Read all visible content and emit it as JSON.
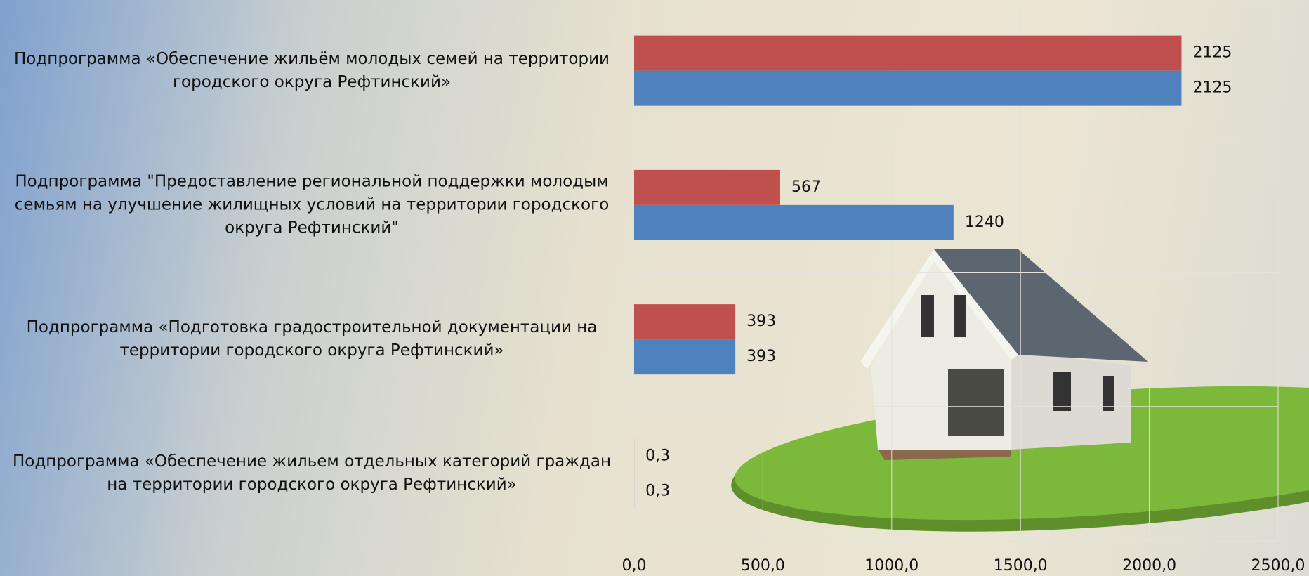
{
  "chart_data": {
    "type": "bar",
    "orientation": "horizontal",
    "categories": [
      "Подпрограмма «Обеспечение жильём молодых семей на территории городского округа Рефтинский»",
      "Подпрограмма \"Предоставление региональной поддержки молодым семьям на улучшение жилищных условий на территории городского округа Рефтинский\"",
      "Подпрограмма «Подготовка градостроительной документации на территории городского округа Рефтинский»",
      "Подпрограмма «Обеспечение жильем отдельных категорий граждан на территории городского округа Рефтинский»"
    ],
    "series": [
      {
        "color": "#c0504d",
        "values": [
          2125,
          567,
          393,
          0.3
        ],
        "value_labels": [
          "2125",
          "567",
          "393",
          "0,3"
        ]
      },
      {
        "color": "#4f81bd",
        "values": [
          2125,
          1240,
          393,
          0.3
        ],
        "value_labels": [
          "2125",
          "1240",
          "393",
          "0,3"
        ]
      }
    ],
    "xlim": [
      0,
      2500
    ],
    "xticks": [
      {
        "value": 0,
        "label": "0,0"
      },
      {
        "value": 500,
        "label": "500,0"
      },
      {
        "value": 1000,
        "label": "1000,0"
      },
      {
        "value": 1500,
        "label": "1500,0"
      },
      {
        "value": 2000,
        "label": "2000,0"
      },
      {
        "value": 2500,
        "label": "2500,0"
      }
    ],
    "grid": true
  }
}
